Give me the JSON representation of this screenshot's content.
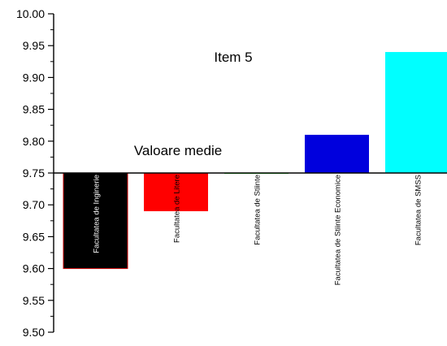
{
  "chart_data": {
    "type": "bar",
    "title": "Item 5",
    "annotation": "Valoare medie",
    "baseline": 9.75,
    "ylim": [
      9.5,
      10.0
    ],
    "yticks": [
      "9.50",
      "9.55",
      "9.60",
      "9.65",
      "9.70",
      "9.75",
      "9.80",
      "9.85",
      "9.90",
      "9.95",
      "10.00"
    ],
    "xlabel": "",
    "ylabel": "",
    "legend": "none",
    "grid": false,
    "categories": [
      "Facultatea de Inginerie",
      "Facultatea de Litere",
      "Facultatea de Stiinte",
      "Facultatea de Stiinte Economice",
      "Facultatea  de SMSS"
    ],
    "values": [
      9.6,
      9.69,
      9.75,
      9.81,
      9.94
    ],
    "colors": [
      "#000000",
      "#ff0000",
      "#33ee33",
      "#0000dd",
      "#00ffff"
    ],
    "label_colors": [
      "#ffffff",
      "#000000",
      "#000000",
      "#000000",
      "#000000"
    ]
  }
}
